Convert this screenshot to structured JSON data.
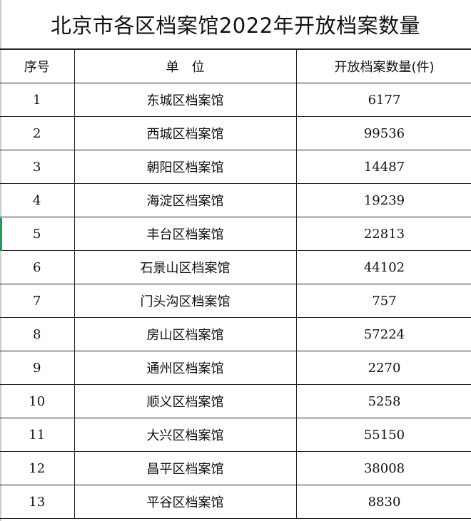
{
  "title": "北京市各区档案馆2022年开放档案数量",
  "columns": [
    "序号",
    "单　位",
    "开放档案数量(件)"
  ],
  "rows": [
    {
      "no": "1",
      "unit": "东城区档案馆",
      "count": "6177"
    },
    {
      "no": "2",
      "unit": "西城区档案馆",
      "count": "99536"
    },
    {
      "no": "3",
      "unit": "朝阳区档案馆",
      "count": "14487"
    },
    {
      "no": "4",
      "unit": "海淀区档案馆",
      "count": "19239"
    },
    {
      "no": "5",
      "unit": "丰台区档案馆",
      "count": "22813"
    },
    {
      "no": "6",
      "unit": "石景山区档案馆",
      "count": "44102"
    },
    {
      "no": "7",
      "unit": "门头沟区档案馆",
      "count": "757"
    },
    {
      "no": "8",
      "unit": "房山区档案馆",
      "count": "57224"
    },
    {
      "no": "9",
      "unit": "通州区档案馆",
      "count": "2270"
    },
    {
      "no": "10",
      "unit": "顺义区档案馆",
      "count": "5258"
    },
    {
      "no": "11",
      "unit": "大兴区档案馆",
      "count": "55150"
    },
    {
      "no": "12",
      "unit": "昌平区档案馆",
      "count": "38008"
    },
    {
      "no": "13",
      "unit": "平谷区档案馆",
      "count": "8830"
    }
  ]
}
